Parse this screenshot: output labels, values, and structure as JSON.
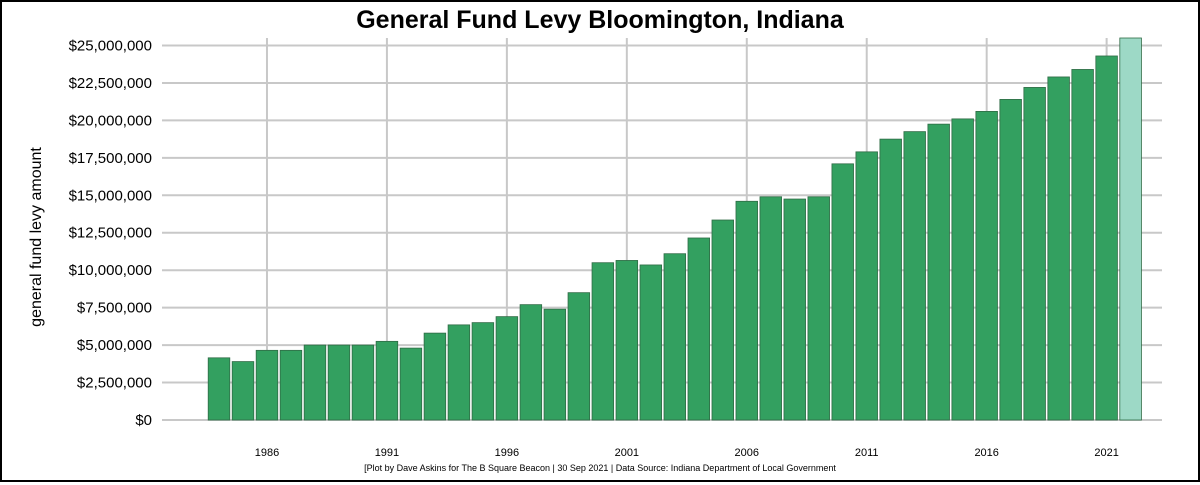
{
  "chart_data": {
    "type": "bar",
    "title": "General Fund Levy Bloomington, Indiana",
    "ylabel": "general fund levy amount",
    "xlabel": "",
    "caption": "[Plot by Dave Askins for The B Square Beacon | 30 Sep 2021 | Data Source: Indiana Department of Local Government",
    "ylim": [
      0,
      25500000
    ],
    "yticks": [
      0,
      2500000,
      5000000,
      7500000,
      10000000,
      12500000,
      15000000,
      17500000,
      20000000,
      22500000,
      25000000
    ],
    "ytick_labels": [
      "$0",
      "$2,500,000",
      "$5,000,000",
      "$7,500,000",
      "$10,000,000",
      "$12,500,000",
      "$15,000,000",
      "$17,500,000",
      "$20,000,000",
      "$22,500,000",
      "$25,000,000"
    ],
    "xticks": [
      1986,
      1991,
      1996,
      2001,
      2006,
      2011,
      2016,
      2021
    ],
    "grid": true,
    "colors": {
      "bar": "#33a060",
      "bar_highlight": "#9dd9c6",
      "grid": "#c8c8c8"
    },
    "x": [
      1984,
      1985,
      1986,
      1987,
      1988,
      1989,
      1990,
      1991,
      1992,
      1993,
      1994,
      1995,
      1996,
      1997,
      1998,
      1999,
      2000,
      2001,
      2002,
      2003,
      2004,
      2005,
      2006,
      2007,
      2008,
      2009,
      2010,
      2011,
      2012,
      2013,
      2014,
      2015,
      2016,
      2017,
      2018,
      2019,
      2020,
      2021,
      2022
    ],
    "values": [
      4150000,
      3900000,
      4650000,
      4650000,
      5000000,
      5000000,
      5000000,
      5250000,
      4800000,
      5800000,
      6350000,
      6500000,
      6900000,
      7700000,
      7400000,
      8500000,
      10500000,
      10650000,
      10350000,
      11100000,
      12150000,
      13350000,
      14600000,
      14900000,
      14750000,
      14900000,
      17100000,
      17900000,
      18750000,
      19250000,
      19750000,
      20100000,
      20600000,
      21400000,
      22200000,
      22900000,
      23400000,
      24300000,
      25500000
    ],
    "highlight_x": [
      2022
    ]
  }
}
